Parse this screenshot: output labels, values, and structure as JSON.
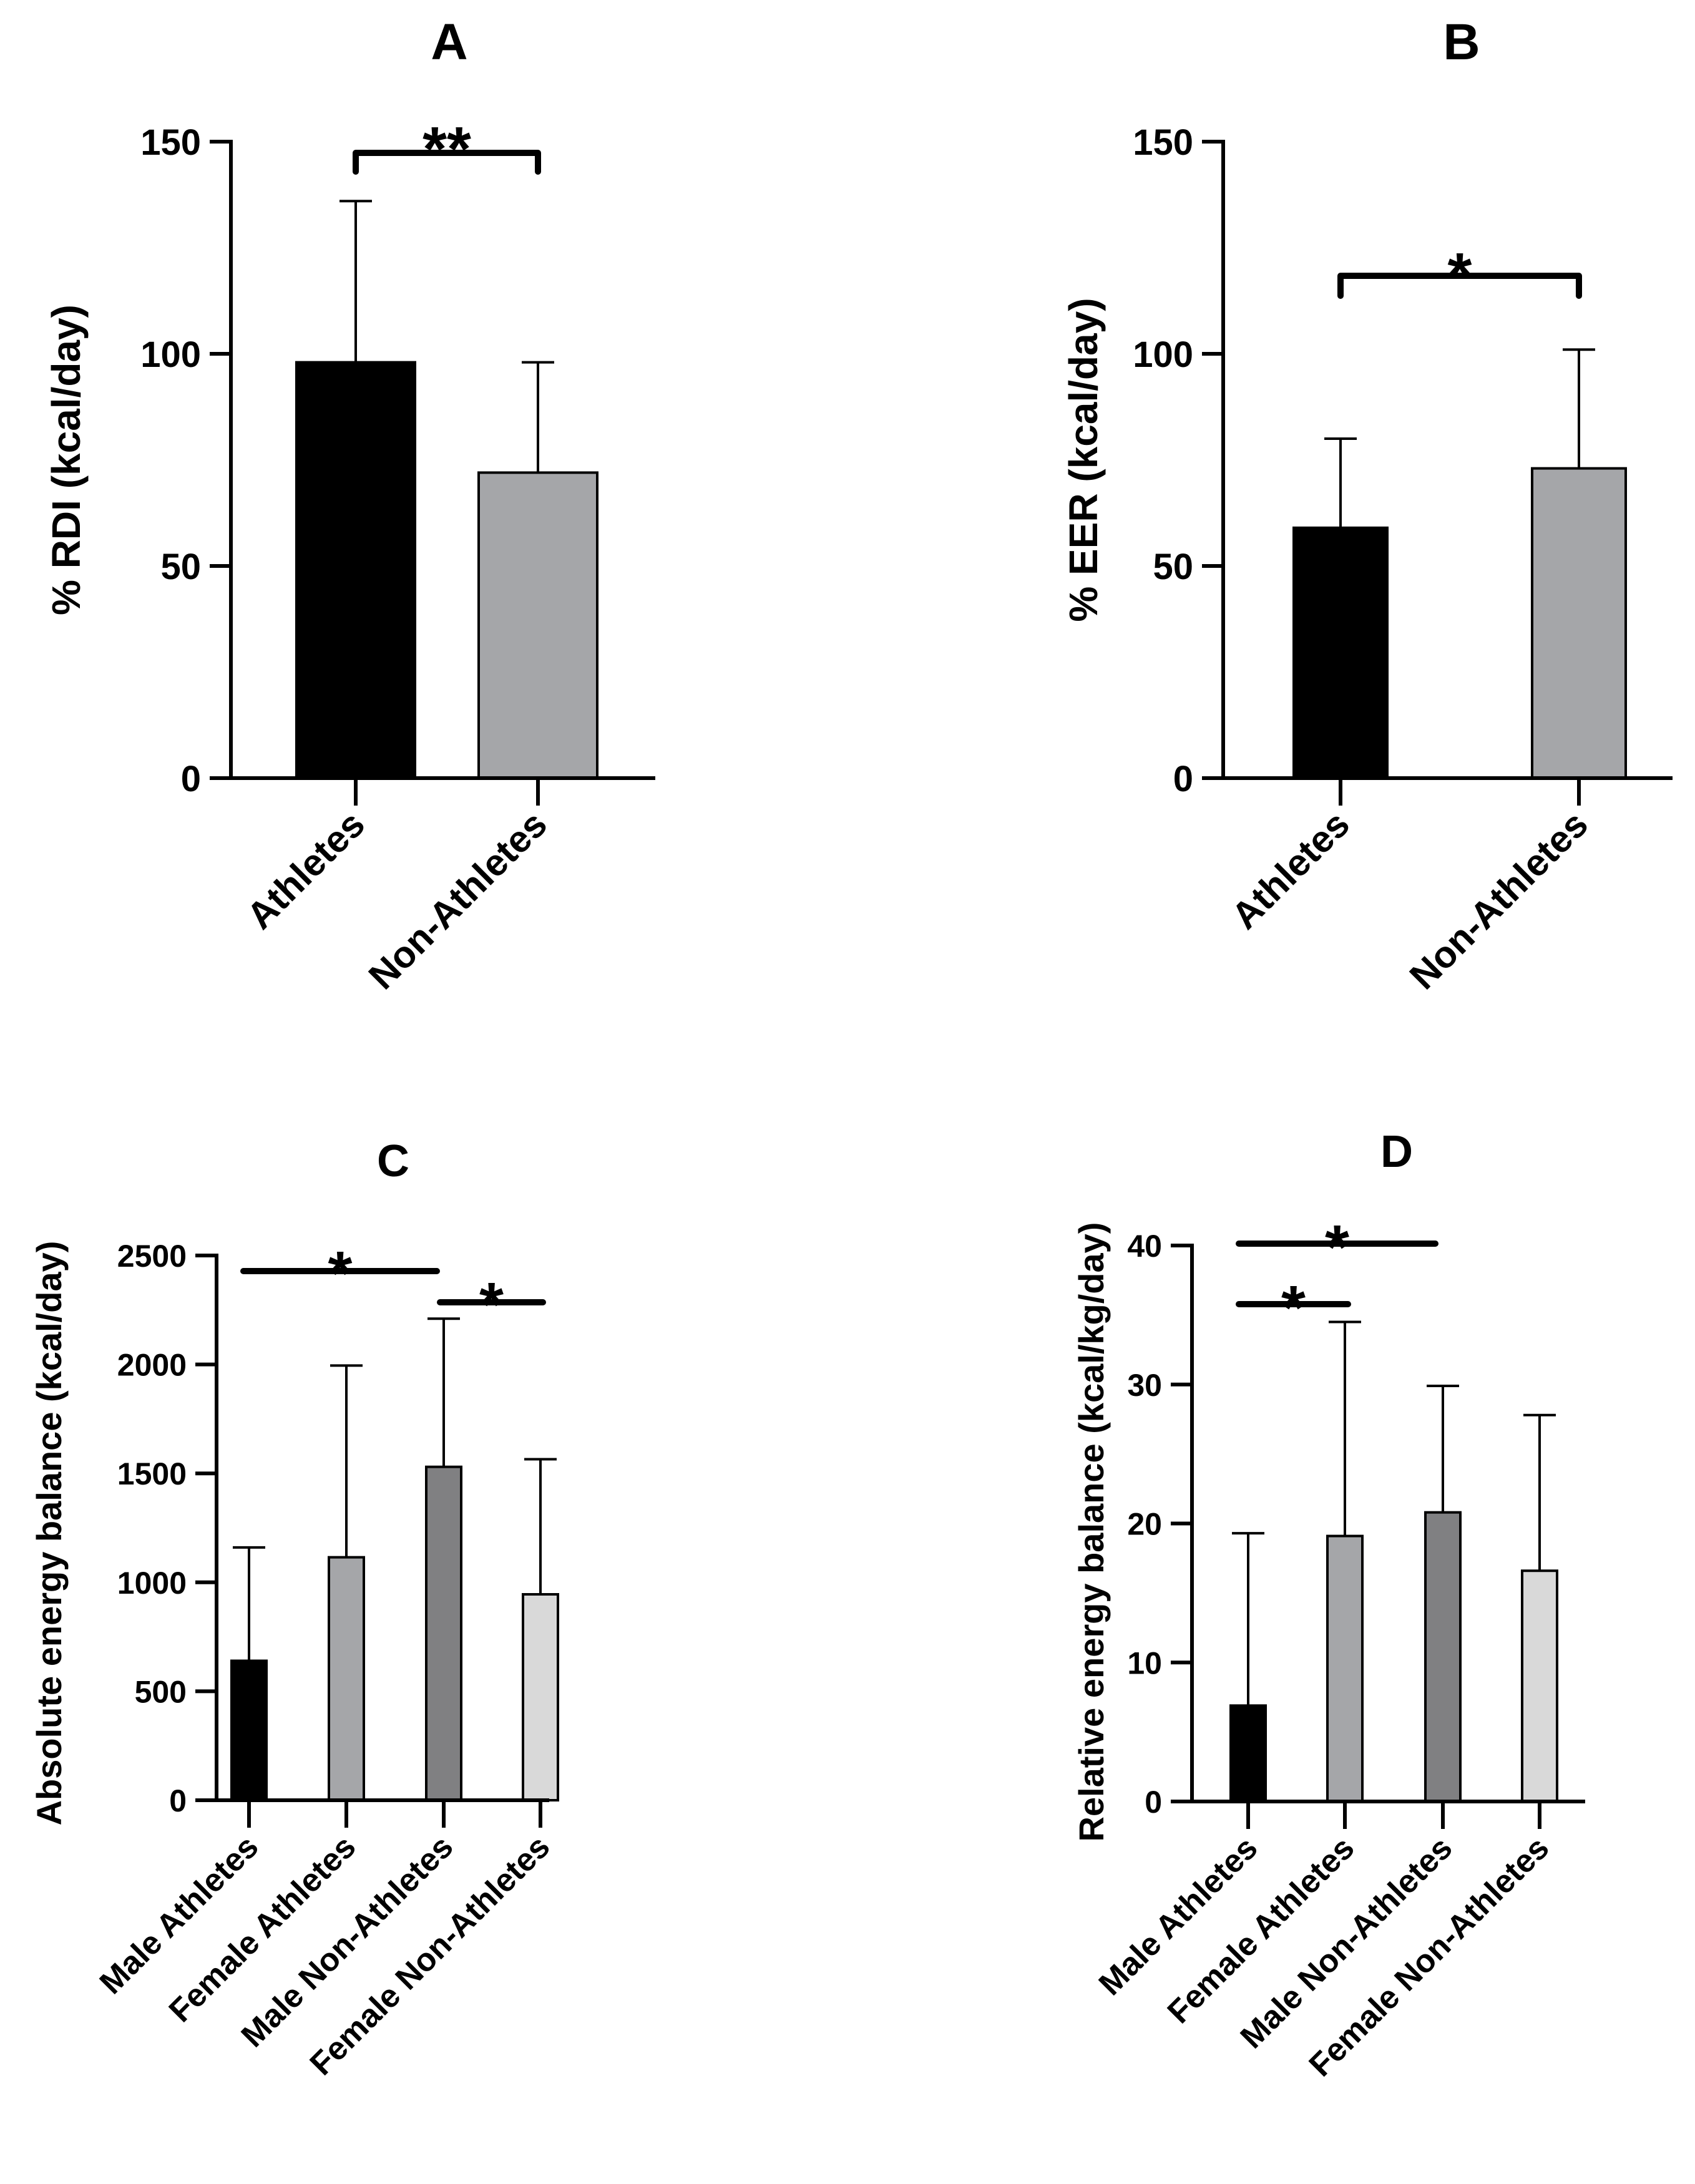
{
  "chart_data": [
    {
      "id": "A",
      "type": "bar",
      "title": "A",
      "xlabel": "",
      "ylabel": "% RDI (kcal/day)",
      "ylim": [
        0,
        150
      ],
      "yticks": [
        0,
        50,
        100,
        150
      ],
      "categories": [
        "Athletes",
        "Non-Athletes"
      ],
      "values": [
        98,
        72
      ],
      "errors": [
        38,
        26
      ],
      "colors": [
        "#000000",
        "#a5a6a9"
      ],
      "significance": [
        {
          "from": "Athletes",
          "to": "Non-Athletes",
          "label": "**",
          "style": "bracket"
        }
      ]
    },
    {
      "id": "B",
      "type": "bar",
      "title": "B",
      "xlabel": "",
      "ylabel": "% EER (kcal/day)",
      "ylim": [
        0,
        150
      ],
      "yticks": [
        0,
        50,
        100,
        150
      ],
      "categories": [
        "Athletes",
        "Non-Athletes"
      ],
      "values": [
        59,
        73
      ],
      "errors": [
        21,
        28
      ],
      "colors": [
        "#000000",
        "#a5a6a9"
      ],
      "significance": [
        {
          "from": "Athletes",
          "to": "Non-Athletes",
          "label": "*",
          "style": "bracket"
        }
      ]
    },
    {
      "id": "C",
      "type": "bar",
      "title": "C",
      "xlabel": "",
      "ylabel": "Absolute energy balance (kcal/day)",
      "ylim": [
        0,
        2500
      ],
      "yticks": [
        0,
        500,
        1000,
        1500,
        2000,
        2500
      ],
      "categories": [
        "Male Athletes",
        "Female Athletes",
        "Male Non-Athletes",
        "Female Non-Athletes"
      ],
      "values": [
        640,
        1115,
        1530,
        945
      ],
      "errors": [
        520,
        880,
        680,
        620
      ],
      "colors": [
        "#000000",
        "#a5a6a9",
        "#808082",
        "#d9d9d9"
      ],
      "significance": [
        {
          "from": "Male Athletes",
          "to": "Male Non-Athletes",
          "label": "*",
          "style": "line"
        },
        {
          "from": "Male Non-Athletes",
          "to": "Female Non-Athletes",
          "label": "*",
          "style": "line"
        }
      ]
    },
    {
      "id": "D",
      "type": "bar",
      "title": "D",
      "xlabel": "",
      "ylabel": "Relative energy balance (kcal/kg/day)",
      "ylim": [
        0,
        40
      ],
      "yticks": [
        0,
        10,
        20,
        30,
        40
      ],
      "categories": [
        "Male Athletes",
        "Female Athletes",
        "Male Non-Athletes",
        "Female Non-Athletes"
      ],
      "values": [
        6.9,
        19.1,
        20.8,
        16.6
      ],
      "errors": [
        12.4,
        15.4,
        9.1,
        11.2
      ],
      "colors": [
        "#000000",
        "#a5a6a9",
        "#808082",
        "#d9d9d9"
      ],
      "significance": [
        {
          "from": "Male Athletes",
          "to": "Male Non-Athletes",
          "label": "*",
          "style": "line"
        },
        {
          "from": "Male Athletes",
          "to": "Female Athletes",
          "label": "*",
          "style": "line"
        }
      ]
    }
  ]
}
